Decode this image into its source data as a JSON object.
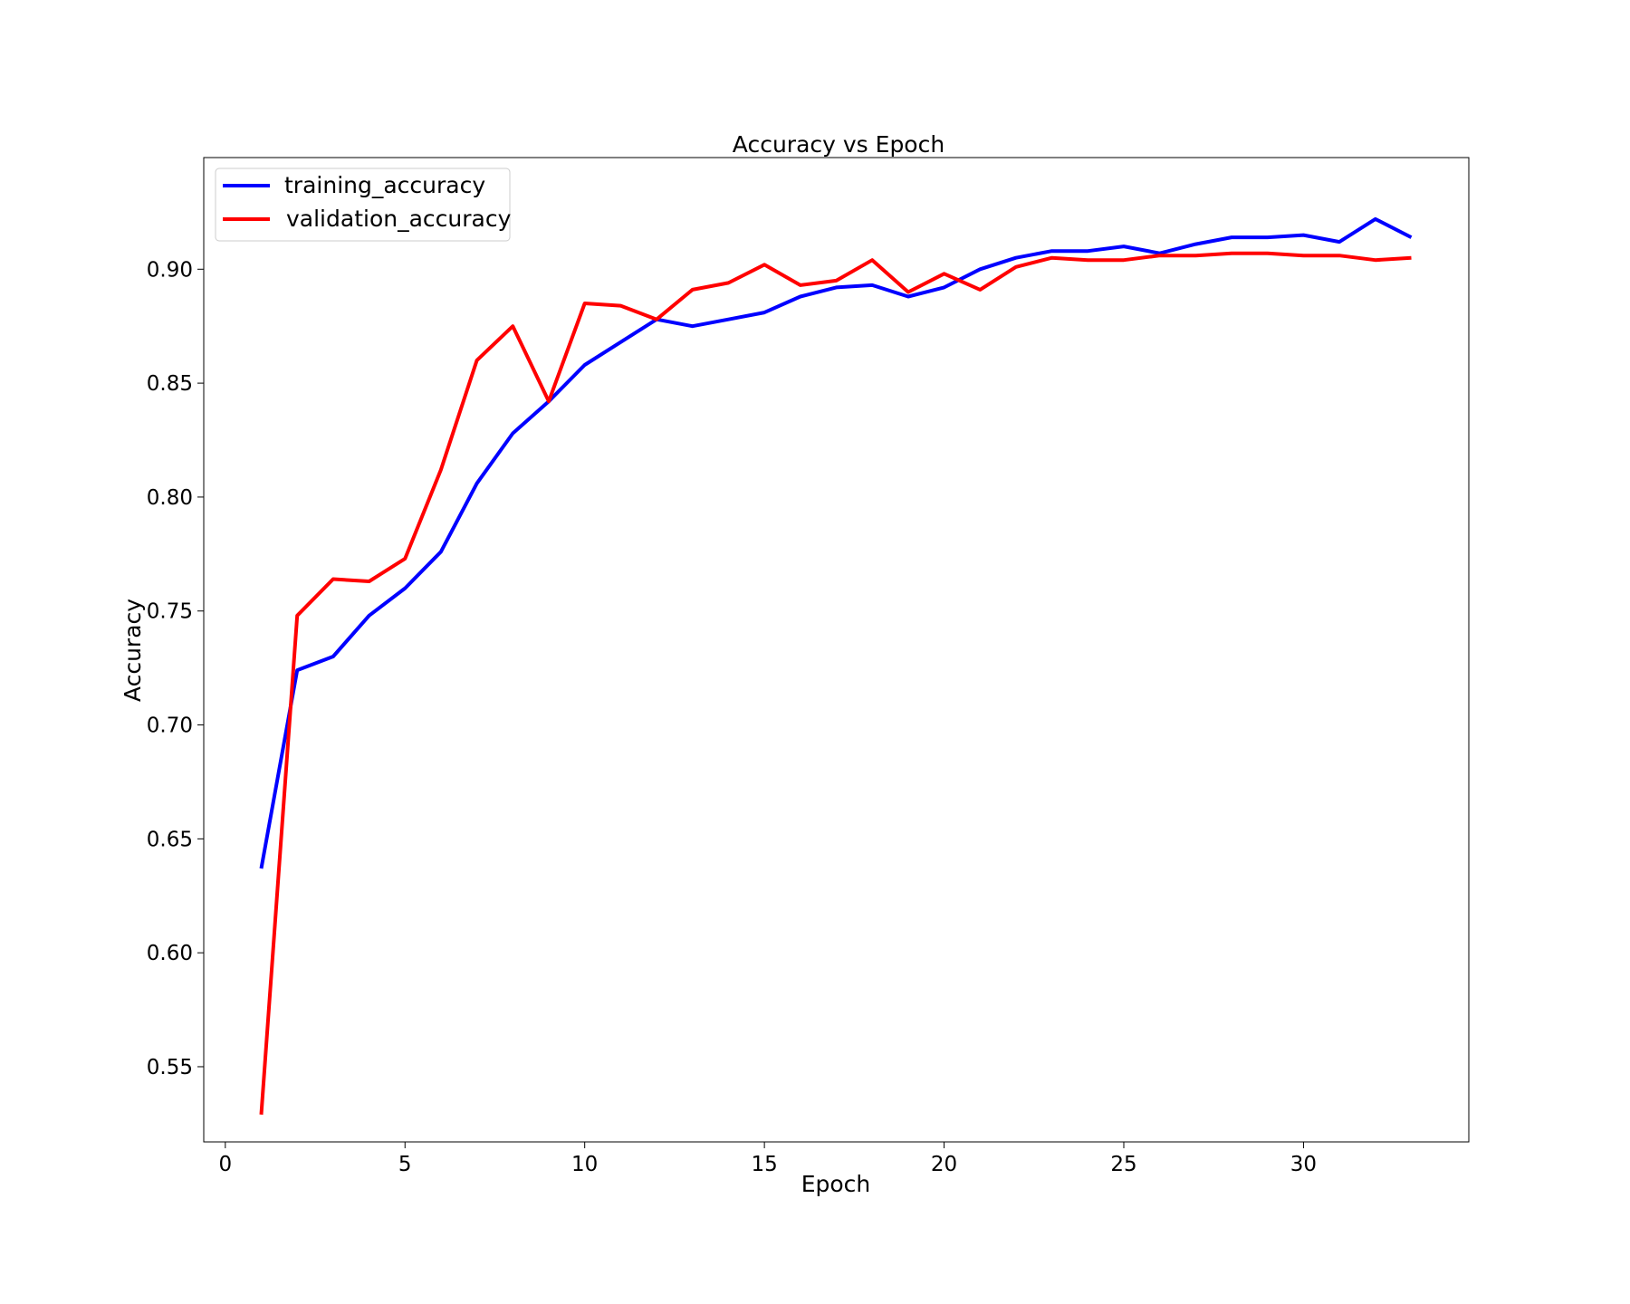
{
  "chart_data": {
    "type": "line",
    "title": "Accuracy vs Epoch",
    "xlabel": "Epoch",
    "ylabel": "Accuracy",
    "xlim": [
      -0.6,
      34.6
    ],
    "ylim": [
      0.517,
      0.949
    ],
    "xticks": [
      0,
      5,
      10,
      15,
      20,
      25,
      30
    ],
    "yticks": [
      0.55,
      0.6,
      0.65,
      0.7,
      0.75,
      0.8,
      0.85,
      0.9
    ],
    "xtick_labels": [
      "0",
      "5",
      "10",
      "15",
      "20",
      "25",
      "30"
    ],
    "ytick_labels": [
      "0.55",
      "0.60",
      "0.65",
      "0.70",
      "0.75",
      "0.80",
      "0.85",
      "0.90"
    ],
    "grid": false,
    "legend_position": "top-left",
    "x": [
      1,
      2,
      3,
      4,
      5,
      6,
      7,
      8,
      9,
      10,
      11,
      12,
      13,
      14,
      15,
      16,
      17,
      18,
      19,
      20,
      21,
      22,
      23,
      24,
      25,
      26,
      27,
      28,
      29,
      30,
      31,
      32,
      33
    ],
    "series": [
      {
        "name": "training_accuracy",
        "color": "#0000ff",
        "values": [
          0.637,
          0.724,
          0.73,
          0.748,
          0.76,
          0.776,
          0.806,
          0.828,
          0.842,
          0.858,
          0.868,
          0.878,
          0.875,
          0.878,
          0.881,
          0.888,
          0.892,
          0.893,
          0.888,
          0.892,
          0.9,
          0.905,
          0.908,
          0.908,
          0.91,
          0.907,
          0.911,
          0.914,
          0.914,
          0.915,
          0.912,
          0.922,
          0.914
        ]
      },
      {
        "name": "validation_accuracy",
        "color": "#ff0000",
        "values": [
          0.529,
          0.748,
          0.764,
          0.763,
          0.773,
          0.812,
          0.86,
          0.875,
          0.842,
          0.885,
          0.884,
          0.878,
          0.891,
          0.894,
          0.902,
          0.893,
          0.895,
          0.904,
          0.89,
          0.898,
          0.891,
          0.901,
          0.905,
          0.904,
          0.904,
          0.906,
          0.906,
          0.907,
          0.907,
          0.906,
          0.906,
          0.904,
          0.905
        ]
      }
    ]
  }
}
